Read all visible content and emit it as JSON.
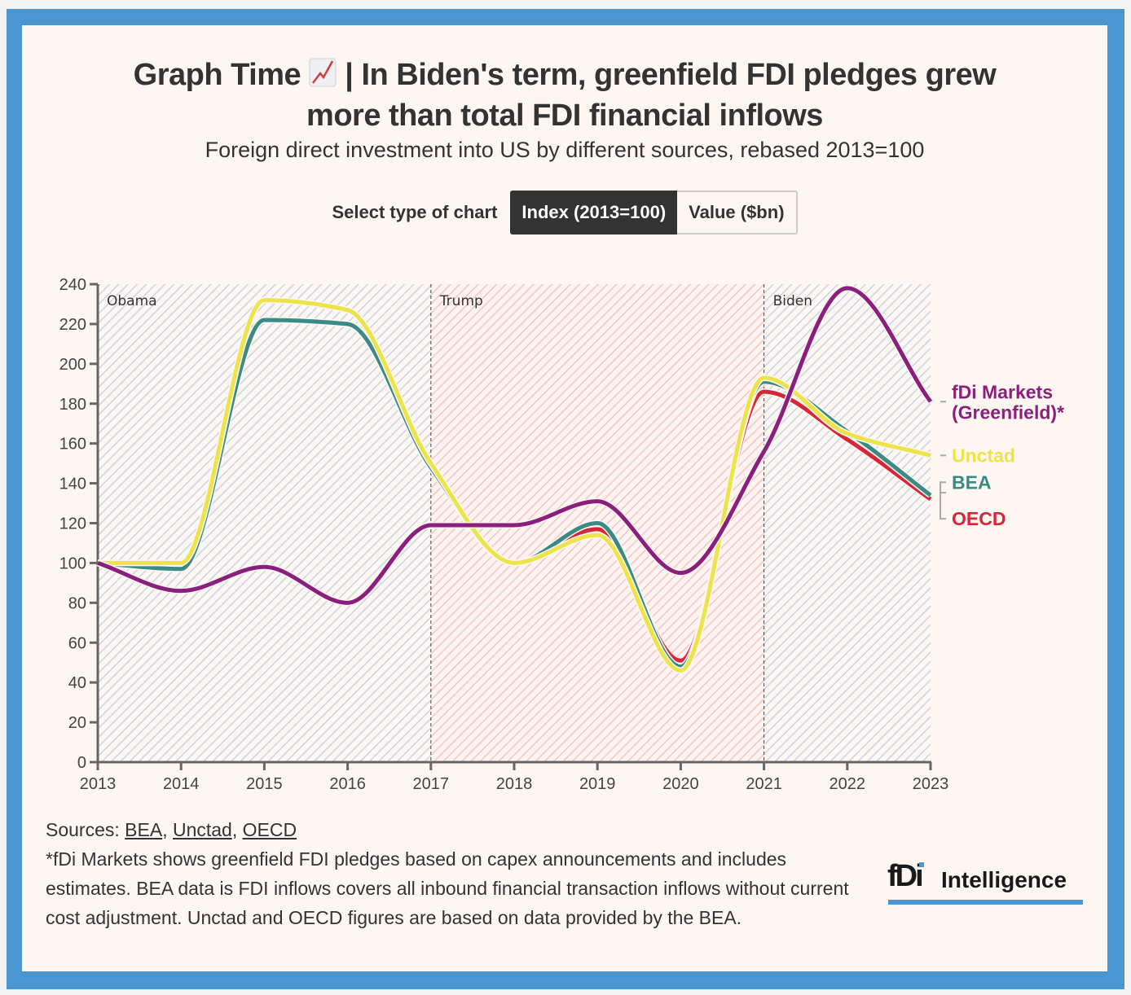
{
  "header": {
    "title_line1_prefix": "Graph Time",
    "title_emoji": "chart-increasing-icon",
    "title_line1_suffix": "| In Biden's term, greenfield FDI pledges grew",
    "title_line2": "more than total FDI financial inflows",
    "subtitle": "Foreign direct investment into US by different sources, rebased 2013=100"
  },
  "toggle": {
    "label": "Select type of chart",
    "options": [
      {
        "label": "Index (2013=100)",
        "selected": true
      },
      {
        "label": "Value ($bn)",
        "selected": false
      }
    ]
  },
  "colors": {
    "frame": "#4a96d2",
    "background": "#fdf6f1",
    "fdi_markets": "#8b1f7d",
    "unctad": "#ede34a",
    "bea": "#3a8a86",
    "oecd": "#d72638",
    "obama_biden_shade": "#c8d6e8",
    "trump_shade": "#f5b8b8"
  },
  "chart_data": {
    "type": "line",
    "title": "In Biden's term, greenfield FDI pledges grew more than total FDI financial inflows",
    "xlabel": "",
    "ylabel": "",
    "x": [
      2013,
      2014,
      2015,
      2016,
      2017,
      2018,
      2019,
      2020,
      2021,
      2022,
      2023
    ],
    "xlim": [
      2013,
      2023
    ],
    "ylim": [
      0,
      240
    ],
    "yticks": [
      0,
      20,
      40,
      60,
      80,
      100,
      120,
      140,
      160,
      180,
      200,
      220,
      240
    ],
    "xticks": [
      "2013",
      "2014",
      "2015",
      "2016",
      "2017",
      "2018",
      "2019",
      "2020",
      "2021",
      "2022",
      "2023"
    ],
    "grid": false,
    "legend_placement": "right (end-of-line labels)",
    "annotations": [
      {
        "label": "Obama",
        "from": 2013,
        "to": 2017
      },
      {
        "label": "Trump",
        "from": 2017,
        "to": 2021
      },
      {
        "label": "Biden",
        "from": 2021,
        "to": 2023
      }
    ],
    "series": [
      {
        "key": "oecd",
        "name": "OECD",
        "values": [
          100,
          97,
          222,
          220,
          148,
          100,
          117,
          51,
          186,
          162,
          132
        ]
      },
      {
        "key": "bea",
        "name": "BEA",
        "values": [
          100,
          97,
          222,
          220,
          148,
          100,
          120,
          48,
          191,
          166,
          134
        ]
      },
      {
        "key": "unctad",
        "name": "Unctad",
        "values": [
          100,
          100,
          232,
          227,
          150,
          100,
          114,
          46,
          193,
          165,
          154
        ]
      },
      {
        "key": "fdi_markets",
        "name": "fDi Markets (Greenfield)*",
        "name_line1": "fDi Markets",
        "name_line2": "(Greenfield)*",
        "values": [
          100,
          86,
          98,
          80,
          119,
          119,
          131,
          95,
          156,
          238,
          181
        ]
      }
    ]
  },
  "footer": {
    "sources_prefix": "Sources: ",
    "sources": [
      "BEA",
      "Unctad",
      "OECD"
    ],
    "note": "*fDi Markets shows greenfield FDI pledges based on capex announcements and includes estimates. BEA data is FDI inflows covers all inbound financial transaction inflows without current cost adjustment. Unctad and OECD figures are based on data provided by the BEA."
  },
  "logo": {
    "mark": "fDi",
    "text": "Intelligence"
  }
}
